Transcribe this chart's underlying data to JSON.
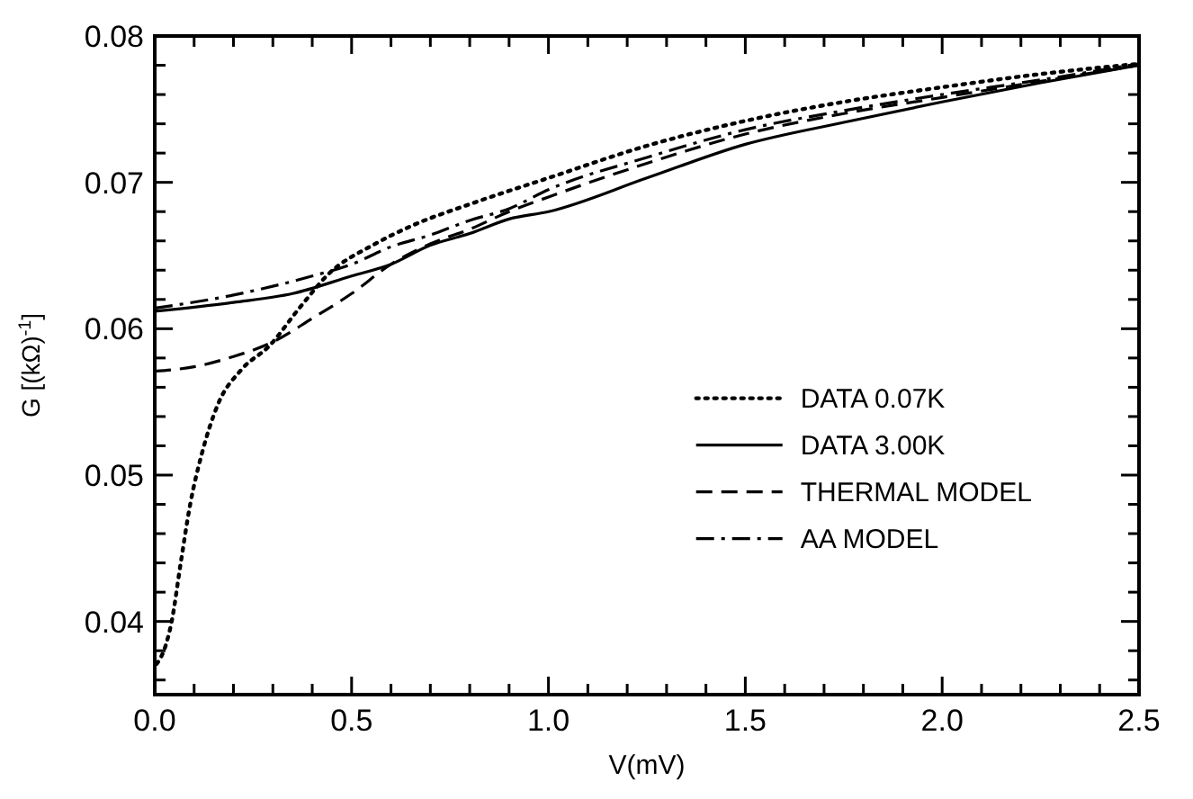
{
  "chart_data": {
    "type": "line",
    "xlabel": "V(mV)",
    "ylabel": "G [(kΩ)$^{-1}$]",
    "xlim": [
      0,
      2.5
    ],
    "ylim": [
      0.035,
      0.08
    ],
    "xticks": [
      {
        "value": 0,
        "label": "0.0"
      },
      {
        "value": 0.1,
        "label": null
      },
      {
        "value": 0.2,
        "label": null
      },
      {
        "value": 0.3,
        "label": null
      },
      {
        "value": 0.4,
        "label": null
      },
      {
        "value": 0.5,
        "label": "0.5"
      },
      {
        "value": 0.6,
        "label": null
      },
      {
        "value": 0.7,
        "label": null
      },
      {
        "value": 0.8,
        "label": null
      },
      {
        "value": 0.9,
        "label": null
      },
      {
        "value": 1,
        "label": "1.0"
      },
      {
        "value": 1.1,
        "label": null
      },
      {
        "value": 1.2,
        "label": null
      },
      {
        "value": 1.3,
        "label": null
      },
      {
        "value": 1.4,
        "label": null
      },
      {
        "value": 1.5,
        "label": "1.5"
      },
      {
        "value": 1.6,
        "label": null
      },
      {
        "value": 1.7,
        "label": null
      },
      {
        "value": 1.8,
        "label": null
      },
      {
        "value": 1.9,
        "label": null
      },
      {
        "value": 2,
        "label": "2.0"
      },
      {
        "value": 2.1,
        "label": null
      },
      {
        "value": 2.2,
        "label": null
      },
      {
        "value": 2.3,
        "label": null
      },
      {
        "value": 2.4,
        "label": null
      },
      {
        "value": 2.5,
        "label": "2.5"
      }
    ],
    "yticks": [
      {
        "value": 0.036,
        "label": null
      },
      {
        "value": 0.038,
        "label": null
      },
      0.04,
      {
        "value": 0.042,
        "label": null
      },
      {
        "value": 0.044,
        "label": null
      },
      {
        "value": 0.046,
        "label": null
      },
      {
        "value": 0.048,
        "label": null
      },
      0.05,
      {
        "value": 0.052,
        "label": null
      },
      {
        "value": 0.054,
        "label": null
      },
      {
        "value": 0.056,
        "label": null
      },
      {
        "value": 0.058,
        "label": null
      },
      0.06,
      {
        "value": 0.062,
        "label": null
      },
      {
        "value": 0.064,
        "label": null
      },
      {
        "value": 0.066,
        "label": null
      },
      {
        "value": 0.068,
        "label": null
      },
      0.07,
      {
        "value": 0.072,
        "label": null
      },
      {
        "value": 0.074,
        "label": null
      },
      {
        "value": 0.076,
        "label": null
      },
      {
        "value": 0.078,
        "label": null
      },
      0.08
    ],
    "grid": false,
    "legend": "right",
    "marker": "none",
    "series": [
      {
        "name": "DATA 0.07K",
        "color": "#000000",
        "line_style": "dotted",
        "x": [
          0.005,
          0.027,
          0.043,
          0.066,
          0.09,
          0.12,
          0.16,
          0.22,
          0.29,
          0.37,
          0.44,
          0.56,
          0.65,
          0.81,
          1.0,
          1.25,
          1.5,
          1.75,
          2.0,
          2.25,
          2.5
        ],
        "values": [
          0.0371,
          0.0383,
          0.04,
          0.044,
          0.048,
          0.0515,
          0.0548,
          0.0572,
          0.0588,
          0.0615,
          0.0637,
          0.0658,
          0.067,
          0.0686,
          0.0703,
          0.0725,
          0.0742,
          0.0755,
          0.0765,
          0.0774,
          0.0781
        ]
      },
      {
        "name": "DATA 3.00K",
        "color": "#000000",
        "line_style": "solid",
        "x": [
          0,
          0.2,
          0.35,
          0.5,
          0.6,
          0.7,
          0.8,
          0.9,
          1.0,
          1.25,
          1.5,
          1.75,
          2.0,
          2.25,
          2.5
        ],
        "values": [
          0.0612,
          0.0618,
          0.0624,
          0.0636,
          0.0644,
          0.0657,
          0.0665,
          0.0675,
          0.068,
          0.0703,
          0.0726,
          0.0741,
          0.0755,
          0.0768,
          0.078
        ]
      },
      {
        "name": "THERMAL MODEL",
        "color": "#000000",
        "line_style": "dashed",
        "x": [
          0,
          0.1,
          0.2,
          0.3,
          0.4,
          0.5,
          0.6,
          0.7,
          0.8,
          0.9,
          1.0,
          1.25,
          1.5,
          1.75,
          2.0,
          2.25,
          2.5
        ],
        "values": [
          0.0571,
          0.0574,
          0.0581,
          0.0591,
          0.0607,
          0.0624,
          0.0644,
          0.0658,
          0.0668,
          0.068,
          0.069,
          0.0713,
          0.0733,
          0.0747,
          0.0758,
          0.0769,
          0.078
        ]
      },
      {
        "name": "AA MODEL",
        "color": "#000000",
        "line_style": "dashdot",
        "x": [
          0,
          0.2,
          0.4,
          0.5,
          0.6,
          0.7,
          0.8,
          0.9,
          1.0,
          1.25,
          1.5,
          1.75,
          2.0,
          2.25,
          2.5
        ],
        "values": [
          0.0614,
          0.0623,
          0.0636,
          0.0644,
          0.0656,
          0.0664,
          0.0674,
          0.0682,
          0.0695,
          0.0717,
          0.0736,
          0.0749,
          0.076,
          0.077,
          0.0781
        ]
      }
    ]
  }
}
